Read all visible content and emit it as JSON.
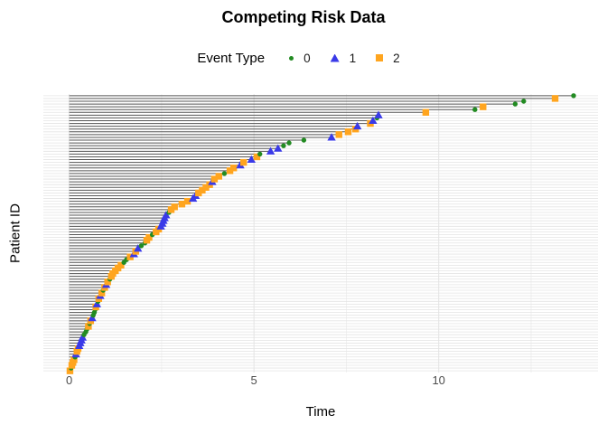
{
  "chart_data": {
    "type": "scatter",
    "subtype": "competing-risks-lollipop",
    "title": "Competing Risk Data",
    "xlabel": "Time",
    "ylabel": "Patient ID",
    "legend": {
      "title": "Event Type",
      "position": "top",
      "entries": [
        {
          "label": "0",
          "marker": "circle",
          "color": "#228B22"
        },
        {
          "label": "1",
          "marker": "triangle",
          "color": "#3A3AE8"
        },
        {
          "label": "2",
          "marker": "square",
          "color": "#FFA51F"
        }
      ]
    },
    "x_axis": {
      "ticks": [
        0,
        5,
        10
      ],
      "minor_ticks": [
        2.5,
        7.5,
        12.5
      ],
      "range": [
        -0.7,
        14.31
      ]
    },
    "y_axis": {
      "tick_labels_visible": false,
      "n_rows": 100
    },
    "grid": true,
    "colors": {
      "segment": "#575757",
      "grid_major": "#e4e4e4",
      "grid_minor": "#f0f0f0",
      "axis_text": "#4d4d4d",
      "background": "#ffffff"
    },
    "note": "Each row = one patient: horizontal segment from time 0 to event time; marker shape/color encodes event type. Rows ordered bottom-to-top by increasing time.",
    "patients": [
      [
        0.02,
        "2"
      ],
      [
        0.05,
        "0"
      ],
      [
        0.07,
        "2"
      ],
      [
        0.1,
        "2"
      ],
      [
        0.13,
        "2"
      ],
      [
        0.16,
        "0"
      ],
      [
        0.18,
        "1"
      ],
      [
        0.21,
        "2"
      ],
      [
        0.24,
        "2"
      ],
      [
        0.27,
        "1"
      ],
      [
        0.3,
        "1"
      ],
      [
        0.33,
        "1"
      ],
      [
        0.36,
        "1"
      ],
      [
        0.4,
        "0"
      ],
      [
        0.45,
        "0"
      ],
      [
        0.48,
        "0"
      ],
      [
        0.52,
        "2"
      ],
      [
        0.55,
        "0"
      ],
      [
        0.58,
        "2"
      ],
      [
        0.62,
        "1"
      ],
      [
        0.65,
        "0"
      ],
      [
        0.68,
        "0"
      ],
      [
        0.7,
        "0"
      ],
      [
        0.72,
        "2"
      ],
      [
        0.75,
        "1"
      ],
      [
        0.78,
        "0"
      ],
      [
        0.8,
        "2"
      ],
      [
        0.84,
        "1"
      ],
      [
        0.88,
        "2"
      ],
      [
        0.92,
        "0"
      ],
      [
        0.96,
        "2"
      ],
      [
        1.0,
        "1"
      ],
      [
        1.04,
        "2"
      ],
      [
        1.1,
        "0"
      ],
      [
        1.14,
        "2"
      ],
      [
        1.18,
        "2"
      ],
      [
        1.25,
        "2"
      ],
      [
        1.32,
        "2"
      ],
      [
        1.4,
        "2"
      ],
      [
        1.48,
        "0"
      ],
      [
        1.55,
        "0"
      ],
      [
        1.65,
        "2"
      ],
      [
        1.75,
        "1"
      ],
      [
        1.8,
        "2"
      ],
      [
        1.86,
        "1"
      ],
      [
        1.95,
        "0"
      ],
      [
        2.05,
        "0"
      ],
      [
        2.1,
        "2"
      ],
      [
        2.16,
        "2"
      ],
      [
        2.25,
        "0"
      ],
      [
        2.35,
        "2"
      ],
      [
        2.42,
        "2"
      ],
      [
        2.48,
        "1"
      ],
      [
        2.52,
        "1"
      ],
      [
        2.55,
        "1"
      ],
      [
        2.58,
        "1"
      ],
      [
        2.62,
        "1"
      ],
      [
        2.7,
        "0"
      ],
      [
        2.76,
        "2"
      ],
      [
        2.85,
        "2"
      ],
      [
        3.05,
        "2"
      ],
      [
        3.2,
        "2"
      ],
      [
        3.35,
        "1"
      ],
      [
        3.42,
        "1"
      ],
      [
        3.5,
        "2"
      ],
      [
        3.6,
        "2"
      ],
      [
        3.7,
        "2"
      ],
      [
        3.8,
        "2"
      ],
      [
        3.87,
        "1"
      ],
      [
        3.93,
        "2"
      ],
      [
        4.05,
        "2"
      ],
      [
        4.2,
        "0"
      ],
      [
        4.35,
        "2"
      ],
      [
        4.45,
        "2"
      ],
      [
        4.63,
        "1"
      ],
      [
        4.72,
        "2"
      ],
      [
        4.93,
        "1"
      ],
      [
        5.08,
        "2"
      ],
      [
        5.16,
        "0"
      ],
      [
        5.45,
        "1"
      ],
      [
        5.65,
        "1"
      ],
      [
        5.8,
        "0"
      ],
      [
        5.95,
        "0"
      ],
      [
        6.35,
        "0"
      ],
      [
        7.1,
        "1"
      ],
      [
        7.3,
        "2"
      ],
      [
        7.55,
        "2"
      ],
      [
        7.75,
        "2"
      ],
      [
        7.8,
        "1"
      ],
      [
        8.15,
        "2"
      ],
      [
        8.22,
        "1"
      ],
      [
        8.33,
        "0"
      ],
      [
        8.37,
        "1"
      ],
      [
        9.65,
        "2"
      ],
      [
        10.98,
        "0"
      ],
      [
        11.2,
        "2"
      ],
      [
        12.07,
        "0"
      ],
      [
        12.3,
        "0"
      ],
      [
        13.15,
        "2"
      ],
      [
        13.65,
        "0"
      ]
    ]
  }
}
